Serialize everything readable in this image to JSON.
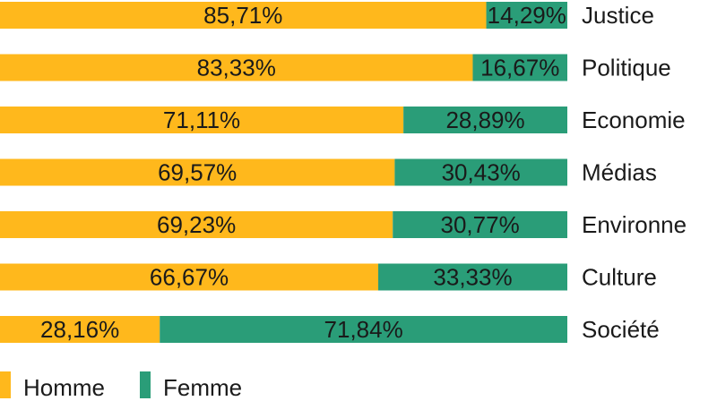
{
  "chart_data": {
    "type": "bar",
    "orientation": "horizontal",
    "stacked": "percent",
    "categories": [
      "Justice",
      "Politique",
      "Economie",
      "Médias",
      "Environne",
      "Culture",
      "Société"
    ],
    "series": [
      {
        "name": "Homme",
        "values": [
          85.71,
          83.33,
          71.11,
          69.57,
          69.23,
          66.67,
          28.16
        ],
        "labels": [
          "85,71%",
          "83,33%",
          "71,11%",
          "69,57%",
          "69,23%",
          "66,67%",
          "28,16%"
        ],
        "color": "#ffb81c"
      },
      {
        "name": "Femme",
        "values": [
          14.29,
          16.67,
          28.89,
          30.43,
          30.77,
          33.33,
          71.84
        ],
        "labels": [
          "14,29%",
          "16,67%",
          "28,89%",
          "30,43%",
          "30,77%",
          "33,33%",
          "71,84%"
        ],
        "color": "#2a9d78"
      }
    ],
    "xlim": [
      0,
      100
    ],
    "grid": false,
    "legend_position": "bottom-left"
  }
}
